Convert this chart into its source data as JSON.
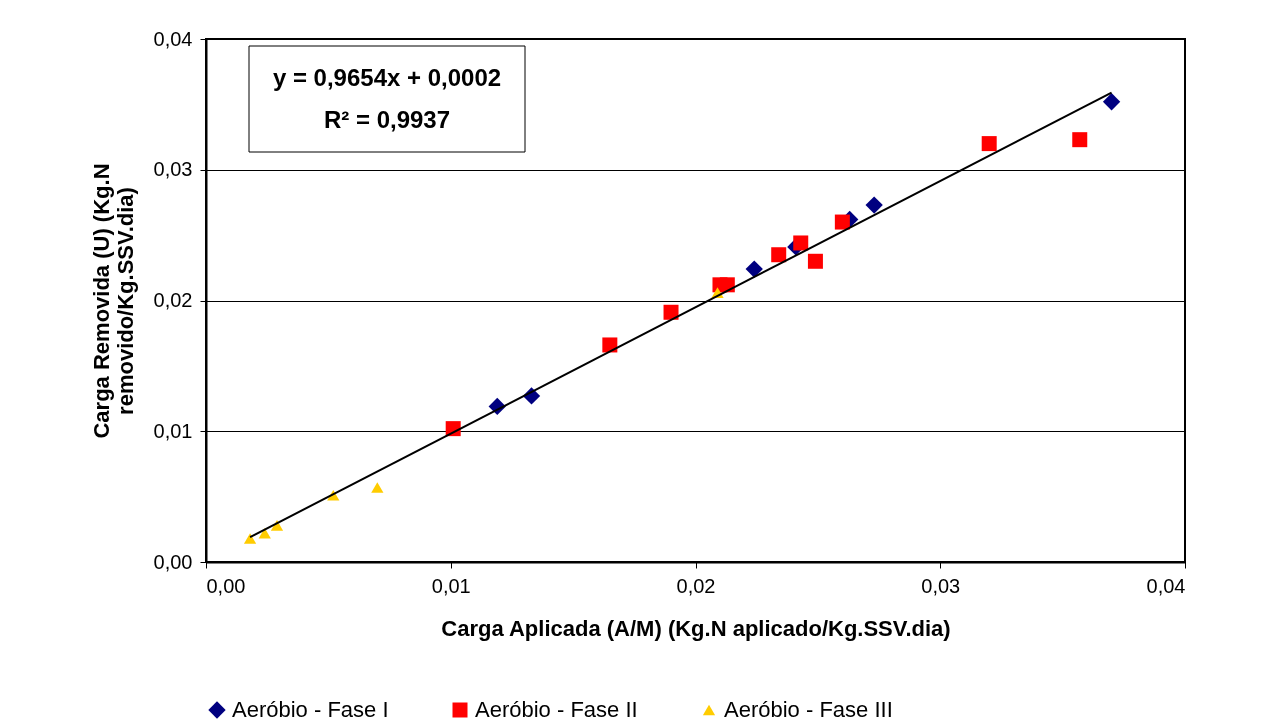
{
  "chart_data": {
    "type": "scatter",
    "xlabel": "Carga Aplicada (A/M) (Kg.N aplicado/Kg.SSV.dia)",
    "ylabel": "Carga Removida (U) (Kg.N removido/Kg.SSV.dia)",
    "annotations": [
      "y = 0,9654x + 0,0002",
      "R² = 0,9937"
    ],
    "xlim": [
      0,
      0.04
    ],
    "ylim": [
      0,
      0.04
    ],
    "xticks": [
      {
        "value": 0,
        "label": "0,00"
      },
      {
        "value": 0.01,
        "label": "0,01"
      },
      {
        "value": 0.02,
        "label": "0,02"
      },
      {
        "value": 0.03,
        "label": "0,03"
      },
      {
        "value": 0.04,
        "label": "0,04"
      }
    ],
    "yticks": [
      {
        "value": 0,
        "label": "0,00"
      },
      {
        "value": 0.01,
        "label": "0,01"
      },
      {
        "value": 0.02,
        "label": "0,02"
      },
      {
        "value": 0.03,
        "label": "0,03"
      },
      {
        "value": 0.04,
        "label": "0,04"
      }
    ],
    "grid": "y",
    "legend": "bottom",
    "series": [
      {
        "name": "Aeróbio - Fase I",
        "color": "#000080",
        "marker": "diamond",
        "x": [
          0.0119,
          0.0133,
          0.0224,
          0.0241,
          0.0263,
          0.0273,
          0.037
        ],
        "values": [
          0.0119,
          0.0127,
          0.0224,
          0.0241,
          0.0262,
          0.0273,
          0.0352
        ]
      },
      {
        "name": "Aeróbio - Fase II",
        "color": "#ff0000",
        "marker": "square",
        "x": [
          0.0101,
          0.0165,
          0.019,
          0.021,
          0.0213,
          0.0234,
          0.0243,
          0.0249,
          0.026,
          0.032,
          0.0357
        ],
        "values": [
          0.0102,
          0.0166,
          0.0191,
          0.0212,
          0.0212,
          0.0235,
          0.0244,
          0.023,
          0.026,
          0.032,
          0.0323
        ]
      },
      {
        "name": "Aeróbio - Fase III",
        "color": "#ffcc00",
        "marker": "triangle",
        "x": [
          0.0018,
          0.0024,
          0.0029,
          0.0052,
          0.007,
          0.0209
        ],
        "values": [
          0.0018,
          0.0022,
          0.0028,
          0.0051,
          0.0057,
          0.0206
        ]
      },
      {
        "type": "line",
        "color": "#000000",
        "line_style": "solid",
        "x": [
          0.0018,
          0.037
        ],
        "values": [
          0.0019,
          0.0359
        ]
      }
    ]
  }
}
